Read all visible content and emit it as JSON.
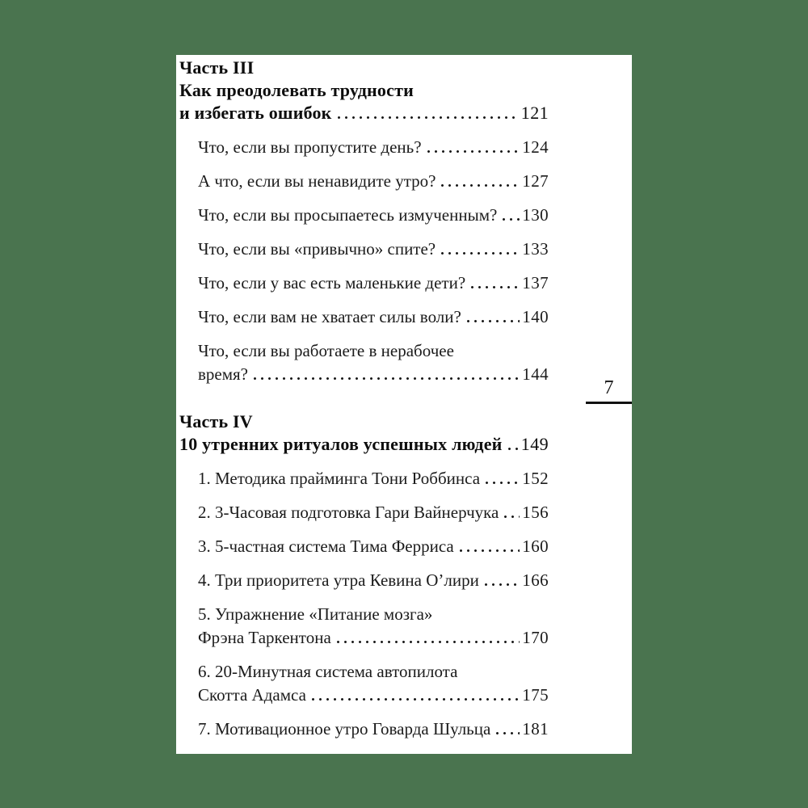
{
  "page": {
    "folio": "7"
  },
  "colors": {
    "background": "#4a744f",
    "paper": "#ffffff",
    "text": "#1b1b1b",
    "rule": "#111111"
  },
  "toc": {
    "sections": [
      {
        "part_label": "Часть III",
        "title_lines": [
          "Как преодолевать трудности",
          "и избегать ошибок"
        ],
        "page": "121",
        "items": [
          {
            "lines": [
              "Что, если вы пропустите день?"
            ],
            "page": "124"
          },
          {
            "lines": [
              "А что, если вы ненавидите утро?"
            ],
            "page": "127"
          },
          {
            "lines": [
              "Что, если вы просыпаетесь измученным?"
            ],
            "page": "130"
          },
          {
            "lines": [
              "Что, если вы «привычно» спите?"
            ],
            "page": "133"
          },
          {
            "lines": [
              "Что, если у вас есть маленькие дети?"
            ],
            "page": "137"
          },
          {
            "lines": [
              "Что, если вам не хватает силы воли?"
            ],
            "page": "140"
          },
          {
            "lines": [
              "Что, если вы работаете в нерабочее",
              "время?"
            ],
            "page": "144"
          }
        ]
      },
      {
        "part_label": "Часть IV",
        "title_lines": [
          "10 утренних ритуалов успешных людей"
        ],
        "page": "149",
        "items": [
          {
            "lines": [
              "1. Методика прайминга Тони Роббинса"
            ],
            "page": "152"
          },
          {
            "lines": [
              "2. 3-Часовая подготовка Гари Вайнерчука"
            ],
            "page": "156"
          },
          {
            "lines": [
              "3. 5-частная система Тима Ферриса"
            ],
            "page": "160"
          },
          {
            "lines": [
              "4. Три приоритета утра Кевина О’лири"
            ],
            "page": "166"
          },
          {
            "lines": [
              "5. Упражнение «Питание мозга»",
              "Фрэна Таркентона"
            ],
            "page": "170"
          },
          {
            "lines": [
              "6. 20-Минутная система автопилота",
              "Скотта Адамса"
            ],
            "page": "175"
          },
          {
            "lines": [
              "7. Мотивационное утро Говарда Шульца"
            ],
            "page": "181"
          }
        ]
      }
    ]
  }
}
